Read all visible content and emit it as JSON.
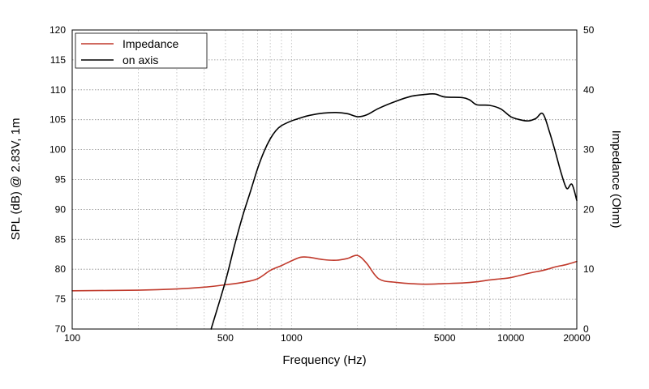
{
  "chart_data": {
    "type": "line",
    "xlabel": "Frequency (Hz)",
    "ylabel": "SPL (dB) @ 2.83V, 1m",
    "y2label": "Impedance (Ohm)",
    "x_scale": "log",
    "xlim": [
      100,
      20000
    ],
    "ylim": [
      70,
      120
    ],
    "y2lim": [
      0,
      50
    ],
    "x_ticks": [
      100,
      500,
      1000,
      5000,
      10000,
      20000
    ],
    "x_tick_labels": [
      "100",
      "500",
      "1000",
      "5000",
      "10000",
      "20000"
    ],
    "y_ticks": [
      70,
      75,
      80,
      85,
      90,
      95,
      100,
      105,
      110,
      115,
      120
    ],
    "y_tick_labels": [
      "70",
      "75",
      "80",
      "85",
      "90",
      "95",
      "100",
      "105",
      "110",
      "115",
      "120"
    ],
    "y2_ticks": [
      0,
      10,
      20,
      30,
      40,
      50
    ],
    "y2_tick_labels": [
      "0",
      "10",
      "20",
      "30",
      "40",
      "50"
    ],
    "grid": true,
    "legend_position": "top-left",
    "series": [
      {
        "name": "Impedance",
        "axis": "right",
        "color": "#c0392b",
        "x": [
          100,
          200,
          300,
          400,
          500,
          600,
          700,
          800,
          900,
          1000,
          1100,
          1200,
          1400,
          1600,
          1800,
          2000,
          2200,
          2500,
          3000,
          4000,
          5000,
          6000,
          7000,
          8000,
          9000,
          10000,
          12000,
          14000,
          15000,
          16000,
          18000,
          20000
        ],
        "values": [
          6.4,
          6.5,
          6.7,
          7.0,
          7.4,
          7.8,
          8.4,
          9.8,
          10.6,
          11.4,
          12.0,
          12.0,
          11.6,
          11.5,
          11.8,
          12.3,
          11.0,
          8.4,
          7.8,
          7.5,
          7.6,
          7.7,
          7.9,
          8.2,
          8.4,
          8.6,
          9.3,
          9.8,
          10.1,
          10.4,
          10.8,
          11.3
        ]
      },
      {
        "name": "on axis",
        "axis": "left",
        "color": "#000000",
        "x": [
          430,
          500,
          550,
          600,
          650,
          700,
          750,
          800,
          850,
          900,
          1000,
          1100,
          1200,
          1400,
          1600,
          1800,
          2000,
          2200,
          2500,
          3000,
          3500,
          4000,
          4500,
          5000,
          6000,
          6500,
          7000,
          8000,
          9000,
          10000,
          11000,
          12000,
          13000,
          14000,
          15000,
          16000,
          17000,
          18000,
          19000,
          20000
        ],
        "values": [
          70,
          78,
          84,
          89,
          93,
          96.8,
          99.7,
          101.8,
          103.2,
          104.0,
          104.8,
          105.3,
          105.7,
          106.1,
          106.2,
          106.0,
          105.5,
          105.8,
          106.9,
          108.1,
          108.9,
          109.2,
          109.3,
          108.8,
          108.7,
          108.3,
          107.5,
          107.4,
          106.8,
          105.5,
          105.0,
          104.8,
          105.2,
          106.0,
          103.0,
          99.5,
          96.0,
          93.5,
          94.2,
          91.5
        ]
      }
    ]
  }
}
